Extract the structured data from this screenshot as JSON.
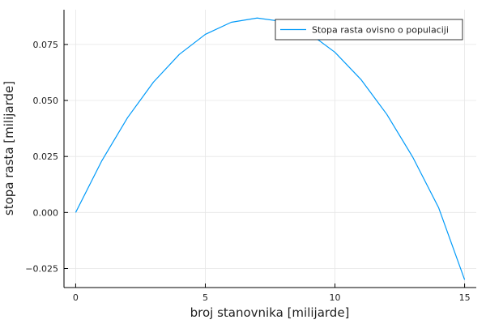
{
  "chart_data": {
    "type": "line",
    "xlabel": "broj stanovnika [milijarde]",
    "ylabel": "stopa rasta [milijarde]",
    "xlim": [
      -0.45,
      15.45
    ],
    "ylim": [
      -0.0335,
      0.0905
    ],
    "xticks": [
      0,
      5,
      10,
      15
    ],
    "xtick_labels": [
      "0",
      "5",
      "10",
      "15"
    ],
    "yticks": [
      -0.025,
      0,
      0.025,
      0.05,
      0.075
    ],
    "ytick_labels": [
      "−0.025",
      "0.000",
      "0.025",
      "0.050",
      "0.075"
    ],
    "grid": true,
    "legend_position": "top-right",
    "series": [
      {
        "name": "Stopa rasta ovisno o populaciji",
        "color": "#009af9",
        "x": [
          0,
          1,
          2,
          3,
          4,
          5,
          6,
          7,
          8,
          9,
          10,
          11,
          12,
          13,
          14,
          15
        ],
        "y": [
          0.0,
          0.0229,
          0.0423,
          0.0582,
          0.0706,
          0.0795,
          0.0849,
          0.0868,
          0.0852,
          0.0801,
          0.0715,
          0.0594,
          0.0438,
          0.0247,
          0.0021,
          -0.03
        ]
      }
    ]
  }
}
